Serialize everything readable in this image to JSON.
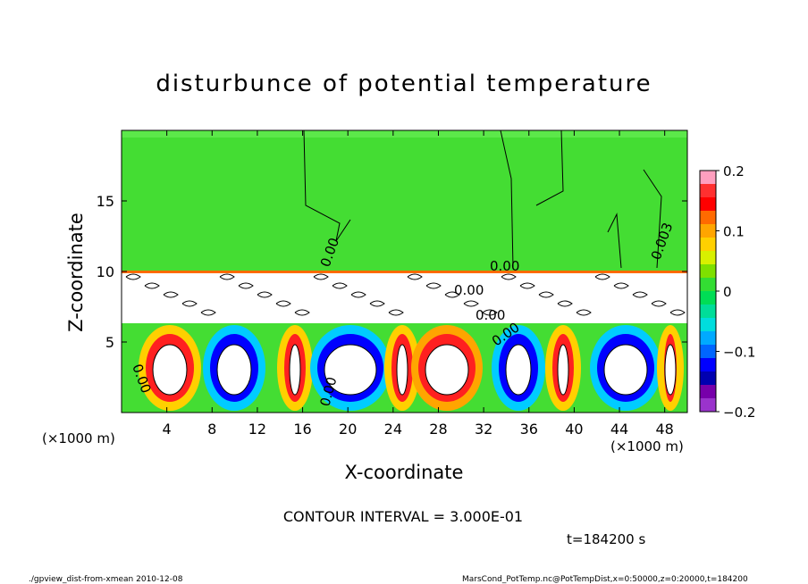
{
  "chart_data": {
    "type": "heatmap",
    "title": "disturbunce of potential temperature",
    "xlabel": "X-coordinate",
    "ylabel": "Z-coordinate",
    "x_unit_left": "(×1000 m)",
    "x_unit_right": "(×1000 m)",
    "xlim": [
      0,
      50
    ],
    "ylim": [
      0,
      20
    ],
    "x_ticks": [
      4,
      8,
      12,
      16,
      20,
      24,
      28,
      32,
      36,
      40,
      44,
      48
    ],
    "y_ticks": [
      5,
      10,
      15
    ],
    "colorbar": {
      "min": -0.2,
      "max": 0.2,
      "ticks": [
        "0.2",
        "0.1",
        "0",
        "−0.1",
        "−0.2"
      ],
      "colors": [
        "#ff9fbf",
        "#ff3030",
        "#ff0000",
        "#ff6a00",
        "#ffa500",
        "#ffd000",
        "#d8f000",
        "#7ee000",
        "#33dd33",
        "#00dd55",
        "#00dd99",
        "#00dddd",
        "#00aaff",
        "#0066ff",
        "#0000ff",
        "#0000b0",
        "#7700aa",
        "#9a33cc"
      ]
    },
    "contour_labels": [
      "0.00",
      "0.00",
      "0.00",
      "0.00",
      "0.00",
      "0.00",
      "0.00",
      "0.003"
    ],
    "contour_interval": "CONTOUR INTERVAL = 3.000E-01",
    "time": "t=184200 s"
  },
  "footer": {
    "left": "./gpview_dist-from-xmean  2010-12-08",
    "right": "MarsCond_PotTemp.nc@PotTempDist,x=0:50000,z=0:20000,t=184200"
  }
}
